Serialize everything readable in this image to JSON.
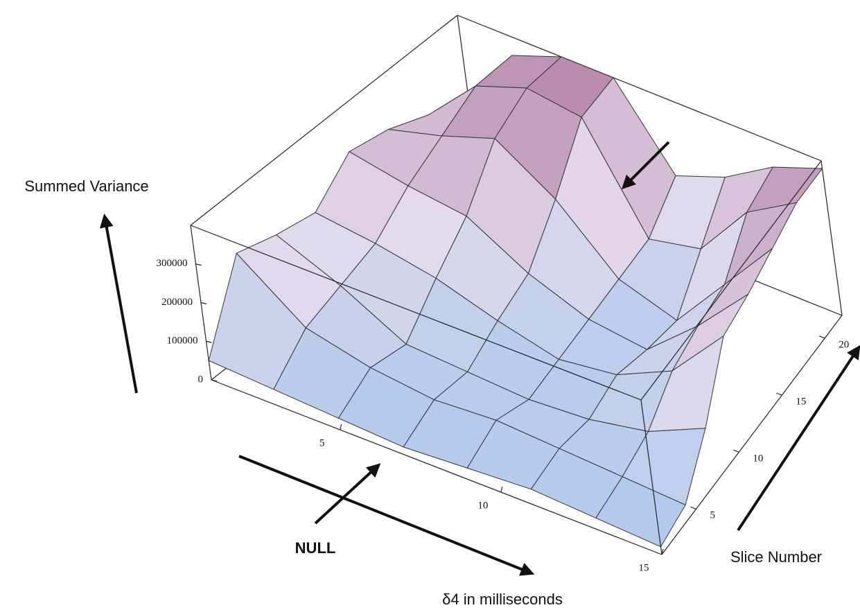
{
  "chart_data": {
    "type": "surface",
    "zlabel": "Summed Variance",
    "xlabel": "δ4 in milliseconds",
    "ylabel": "Slice Number",
    "annotations": [
      {
        "text": "NULL"
      }
    ],
    "x": [
      1,
      3,
      5,
      7,
      9,
      11,
      13,
      15
    ],
    "y": [
      1,
      4,
      7,
      10,
      13,
      16,
      19,
      22
    ],
    "z": [
      [
        50000,
        40000,
        30000,
        20000,
        30000,
        40000,
        30000,
        20000
      ],
      [
        250000,
        120000,
        80000,
        60000,
        70000,
        60000,
        50000,
        40000
      ],
      [
        220000,
        150000,
        60000,
        50000,
        40000,
        50000,
        80000,
        150000
      ],
      [
        200000,
        180000,
        150000,
        100000,
        60000,
        80000,
        150000,
        300000
      ],
      [
        280000,
        250000,
        230000,
        140000,
        80000,
        60000,
        180000,
        320000
      ],
      [
        260000,
        300000,
        350000,
        250000,
        100000,
        50000,
        200000,
        350000
      ],
      [
        220000,
        350000,
        400000,
        380000,
        120000,
        150000,
        300000,
        380000
      ],
      [
        200000,
        350000,
        400000,
        400000,
        200000,
        250000,
        330000,
        380000
      ]
    ],
    "xlim": [
      1,
      15
    ],
    "xticks": [
      5,
      10,
      15
    ],
    "ylim": [
      1,
      22
    ],
    "yticks": [
      5,
      10,
      15,
      20
    ],
    "zlim": [
      0,
      400000
    ],
    "zticks": [
      0,
      100000,
      200000,
      300000
    ],
    "colormap": [
      "#a8c6ec",
      "#e4dcec",
      "#b98aae"
    ],
    "box": true
  }
}
